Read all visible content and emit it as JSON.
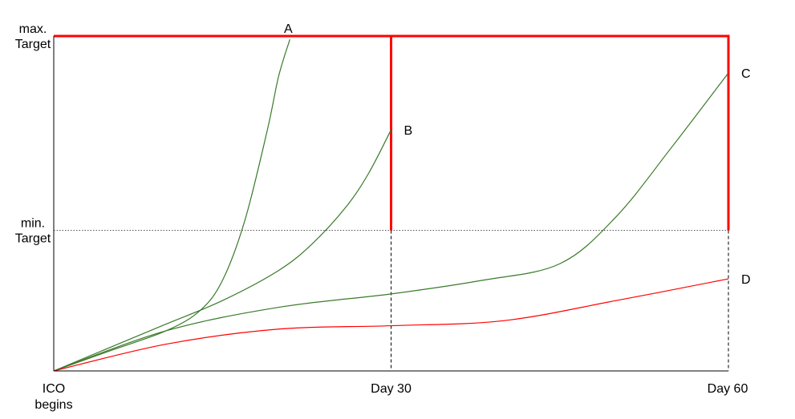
{
  "chart_data": {
    "type": "line",
    "title": "",
    "xlabel": "",
    "ylabel": "",
    "xlim": [
      0,
      60
    ],
    "ylim": [
      0,
      100
    ],
    "x_ticks": [
      {
        "value": 0,
        "lines": [
          "ICO",
          "begins"
        ]
      },
      {
        "value": 30,
        "lines": [
          "Day 30"
        ]
      },
      {
        "value": 60,
        "lines": [
          "Day 60"
        ]
      }
    ],
    "y_ticks": [
      {
        "value": 42,
        "lines": [
          "min.",
          "Target"
        ]
      },
      {
        "value": 100,
        "lines": [
          "max.",
          "Target"
        ]
      }
    ],
    "colors": {
      "green": "#3a7a2a",
      "red": "#ff0000",
      "axis": "#000000"
    },
    "series": [
      {
        "name": "A",
        "color": "green",
        "x": [
          0,
          5,
          10,
          13,
          15,
          17,
          19,
          20,
          21
        ],
        "y": [
          0,
          6,
          12,
          18,
          27,
          45,
          72,
          88,
          99
        ]
      },
      {
        "name": "B",
        "color": "green",
        "x": [
          0,
          5,
          10,
          15,
          20,
          23,
          26,
          28,
          30
        ],
        "y": [
          0,
          7,
          14,
          21,
          30,
          38,
          49,
          59,
          72
        ]
      },
      {
        "name": "C",
        "color": "green",
        "x": [
          0,
          10,
          20,
          30,
          38,
          45,
          50,
          55,
          60
        ],
        "y": [
          0,
          12,
          19,
          23,
          27,
          32,
          46,
          67,
          89
        ]
      },
      {
        "name": "D",
        "color": "red",
        "x": [
          0,
          10,
          20,
          30,
          40,
          50,
          60
        ],
        "y": [
          0,
          8,
          12.5,
          13.5,
          15,
          21,
          27.5
        ]
      }
    ],
    "reference_lines": {
      "max_target": 100,
      "min_target": 42
    },
    "window_boxes": [
      {
        "x_start": 0,
        "x_end": 30
      },
      {
        "x_start": 30,
        "x_end": 60
      }
    ]
  }
}
